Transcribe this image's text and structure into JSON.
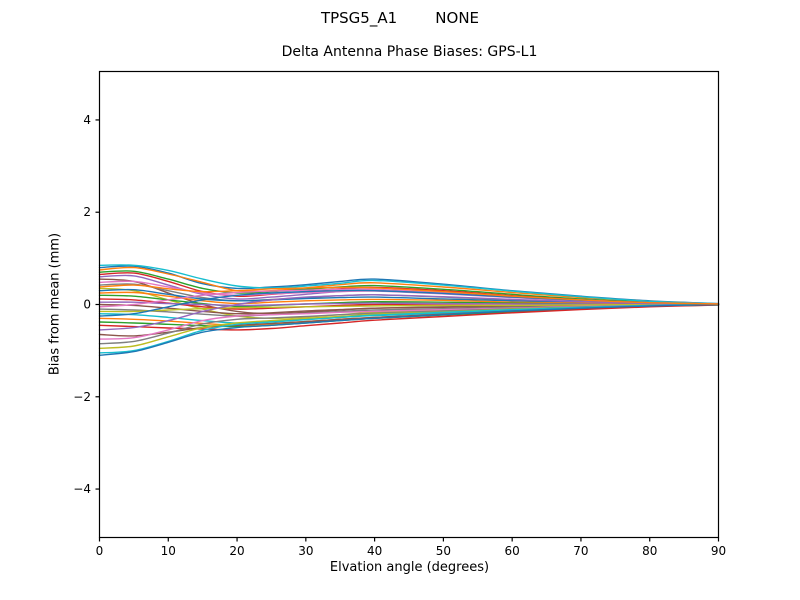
{
  "figure": {
    "suptitle": "TPSG5_A1        NONE",
    "axes_title": "Delta Antenna Phase Biases: GPS-L1",
    "xlabel": "Elvation angle (degrees)",
    "ylabel": "Bias from mean (mm)",
    "background_color": "#ffffff",
    "axes_color": "#000000"
  },
  "chart_data": {
    "type": "line",
    "title": "Delta Antenna Phase Biases: GPS-L1",
    "xlabel": "Elvation angle (degrees)",
    "ylabel": "Bias from mean (mm)",
    "xlim": [
      0,
      90
    ],
    "ylim": [
      -5.05,
      5.05
    ],
    "xticks": [
      0,
      10,
      20,
      30,
      40,
      50,
      60,
      70,
      80,
      90
    ],
    "xtick_labels": [
      "0",
      "10",
      "20",
      "30",
      "40",
      "50",
      "60",
      "70",
      "80",
      "90"
    ],
    "yticks": [
      -4,
      -2,
      0,
      2,
      4
    ],
    "ytick_labels": [
      "−4",
      "−2",
      "0",
      "2",
      "4"
    ],
    "grid": false,
    "legend": "none",
    "line_width": 1.4,
    "palette": [
      "#1f77b4",
      "#ff7f0e",
      "#2ca02c",
      "#d62728",
      "#9467bd",
      "#8c564b",
      "#e377c2",
      "#7f7f7f",
      "#bcbd22",
      "#17becf"
    ],
    "x": [
      0,
      5,
      10,
      15,
      20,
      25,
      30,
      35,
      40,
      50,
      60,
      70,
      80,
      90
    ],
    "series": [
      {
        "values": [
          0.8,
          0.83,
          0.68,
          0.45,
          0.35,
          0.38,
          0.43,
          0.5,
          0.55,
          0.44,
          0.3,
          0.18,
          0.08,
          0.02
        ]
      },
      {
        "values": [
          0.75,
          0.8,
          0.66,
          0.48,
          0.3,
          0.3,
          0.36,
          0.43,
          0.47,
          0.38,
          0.26,
          0.15,
          0.07,
          0.01
        ]
      },
      {
        "values": [
          0.7,
          0.72,
          0.55,
          0.35,
          0.25,
          0.28,
          0.33,
          0.38,
          0.41,
          0.33,
          0.22,
          0.12,
          0.05,
          0.01
        ]
      },
      {
        "values": [
          0.65,
          0.68,
          0.5,
          0.28,
          0.18,
          0.22,
          0.28,
          0.34,
          0.37,
          0.3,
          0.19,
          0.1,
          0.04,
          0.0
        ]
      },
      {
        "values": [
          0.6,
          0.62,
          0.42,
          0.22,
          0.12,
          0.16,
          0.22,
          0.28,
          0.31,
          0.25,
          0.16,
          0.08,
          0.03,
          0.0
        ]
      },
      {
        "values": [
          0.55,
          0.5,
          0.25,
          0.0,
          -0.15,
          -0.2,
          -0.17,
          -0.12,
          -0.08,
          -0.05,
          -0.03,
          -0.02,
          -0.01,
          0.0
        ]
      },
      {
        "values": [
          0.48,
          0.5,
          0.38,
          0.25,
          0.2,
          0.23,
          0.26,
          0.28,
          0.29,
          0.23,
          0.15,
          0.08,
          0.03,
          0.0
        ]
      },
      {
        "values": [
          0.42,
          0.44,
          0.3,
          0.15,
          0.08,
          0.11,
          0.15,
          0.19,
          0.21,
          0.16,
          0.1,
          0.05,
          0.02,
          0.0
        ]
      },
      {
        "values": [
          0.35,
          0.3,
          0.1,
          -0.1,
          -0.25,
          -0.3,
          -0.27,
          -0.22,
          -0.17,
          -0.12,
          -0.08,
          -0.04,
          -0.02,
          0.0
        ]
      },
      {
        "values": [
          0.85,
          0.85,
          0.74,
          0.55,
          0.4,
          0.36,
          0.4,
          0.46,
          0.52,
          0.42,
          0.29,
          0.17,
          0.07,
          0.02
        ]
      },
      {
        "values": [
          0.3,
          0.32,
          0.22,
          0.12,
          0.08,
          0.1,
          0.13,
          0.15,
          0.16,
          0.12,
          0.08,
          0.04,
          0.01,
          0.0
        ]
      },
      {
        "values": [
          0.25,
          0.26,
          0.18,
          0.08,
          0.02,
          0.05,
          0.08,
          0.1,
          0.11,
          0.09,
          0.05,
          0.03,
          0.01,
          0.0
        ]
      },
      {
        "values": [
          0.2,
          0.18,
          0.1,
          0.02,
          -0.04,
          -0.02,
          0.01,
          0.04,
          0.06,
          0.05,
          0.03,
          0.01,
          0.0,
          0.0
        ]
      },
      {
        "values": [
          0.12,
          0.1,
          0.03,
          -0.05,
          -0.1,
          -0.08,
          -0.05,
          -0.02,
          0.0,
          0.01,
          0.01,
          0.0,
          0.0,
          0.0
        ]
      },
      {
        "values": [
          0.05,
          0.05,
          0.02,
          0.0,
          -0.02,
          -0.01,
          0.01,
          0.02,
          0.03,
          0.02,
          0.01,
          0.01,
          0.0,
          0.0
        ]
      },
      {
        "values": [
          0.0,
          -0.02,
          -0.08,
          -0.15,
          -0.2,
          -0.18,
          -0.14,
          -0.11,
          -0.08,
          -0.06,
          -0.04,
          -0.02,
          -0.01,
          0.0
        ]
      },
      {
        "values": [
          -0.05,
          0.0,
          0.1,
          0.2,
          0.26,
          0.29,
          0.31,
          0.33,
          0.33,
          0.26,
          0.17,
          0.1,
          0.04,
          0.01
        ]
      },
      {
        "values": [
          -0.1,
          -0.12,
          -0.16,
          -0.21,
          -0.25,
          -0.22,
          -0.19,
          -0.15,
          -0.12,
          -0.09,
          -0.06,
          -0.04,
          -0.02,
          0.0
        ]
      },
      {
        "values": [
          -0.15,
          -0.15,
          -0.12,
          -0.09,
          -0.07,
          -0.06,
          -0.05,
          -0.04,
          -0.03,
          -0.02,
          -0.02,
          -0.01,
          0.0,
          0.0
        ]
      },
      {
        "values": [
          -0.2,
          -0.22,
          -0.28,
          -0.35,
          -0.4,
          -0.37,
          -0.32,
          -0.28,
          -0.24,
          -0.19,
          -0.13,
          -0.08,
          -0.03,
          0.0
        ]
      },
      {
        "values": [
          -0.25,
          -0.2,
          -0.05,
          0.1,
          0.2,
          0.25,
          0.28,
          0.3,
          0.3,
          0.24,
          0.16,
          0.09,
          0.04,
          0.0
        ]
      },
      {
        "values": [
          -0.3,
          -0.32,
          -0.36,
          -0.41,
          -0.45,
          -0.42,
          -0.37,
          -0.32,
          -0.28,
          -0.22,
          -0.15,
          -0.09,
          -0.04,
          0.0
        ]
      },
      {
        "values": [
          -0.38,
          -0.4,
          -0.43,
          -0.46,
          -0.48,
          -0.45,
          -0.4,
          -0.35,
          -0.3,
          -0.23,
          -0.16,
          -0.09,
          -0.04,
          -0.01
        ]
      },
      {
        "values": [
          -0.45,
          -0.48,
          -0.51,
          -0.53,
          -0.55,
          -0.52,
          -0.46,
          -0.4,
          -0.34,
          -0.26,
          -0.18,
          -0.11,
          -0.05,
          -0.01
        ]
      },
      {
        "values": [
          -0.55,
          -0.5,
          -0.35,
          -0.15,
          0.0,
          0.1,
          0.16,
          0.19,
          0.21,
          0.17,
          0.11,
          0.06,
          0.02,
          0.0
        ]
      },
      {
        "values": [
          -0.65,
          -0.68,
          -0.6,
          -0.5,
          -0.45,
          -0.41,
          -0.37,
          -0.32,
          -0.28,
          -0.21,
          -0.14,
          -0.08,
          -0.03,
          0.0
        ]
      },
      {
        "values": [
          -0.75,
          -0.72,
          -0.55,
          -0.35,
          -0.25,
          -0.22,
          -0.2,
          -0.17,
          -0.15,
          -0.11,
          -0.08,
          -0.04,
          -0.02,
          0.0
        ]
      },
      {
        "values": [
          -0.85,
          -0.8,
          -0.62,
          -0.42,
          -0.32,
          -0.29,
          -0.26,
          -0.22,
          -0.19,
          -0.14,
          -0.09,
          -0.05,
          -0.02,
          0.0
        ]
      },
      {
        "values": [
          -0.95,
          -0.9,
          -0.7,
          -0.5,
          -0.4,
          -0.35,
          -0.3,
          -0.26,
          -0.21,
          -0.16,
          -0.1,
          -0.06,
          -0.02,
          0.0
        ]
      },
      {
        "values": [
          -1.05,
          -1.0,
          -0.8,
          -0.56,
          -0.43,
          -0.38,
          -0.33,
          -0.28,
          -0.23,
          -0.17,
          -0.11,
          -0.06,
          -0.02,
          0.0
        ]
      },
      {
        "values": [
          -1.1,
          -1.02,
          -0.82,
          -0.6,
          -0.5,
          -0.45,
          -0.4,
          -0.35,
          -0.3,
          -0.22,
          -0.14,
          -0.08,
          -0.03,
          0.0
        ]
      },
      {
        "values": [
          0.38,
          0.42,
          0.34,
          0.28,
          0.3,
          0.34,
          0.36,
          0.37,
          0.36,
          0.28,
          0.18,
          0.1,
          0.04,
          0.01
        ]
      }
    ]
  }
}
